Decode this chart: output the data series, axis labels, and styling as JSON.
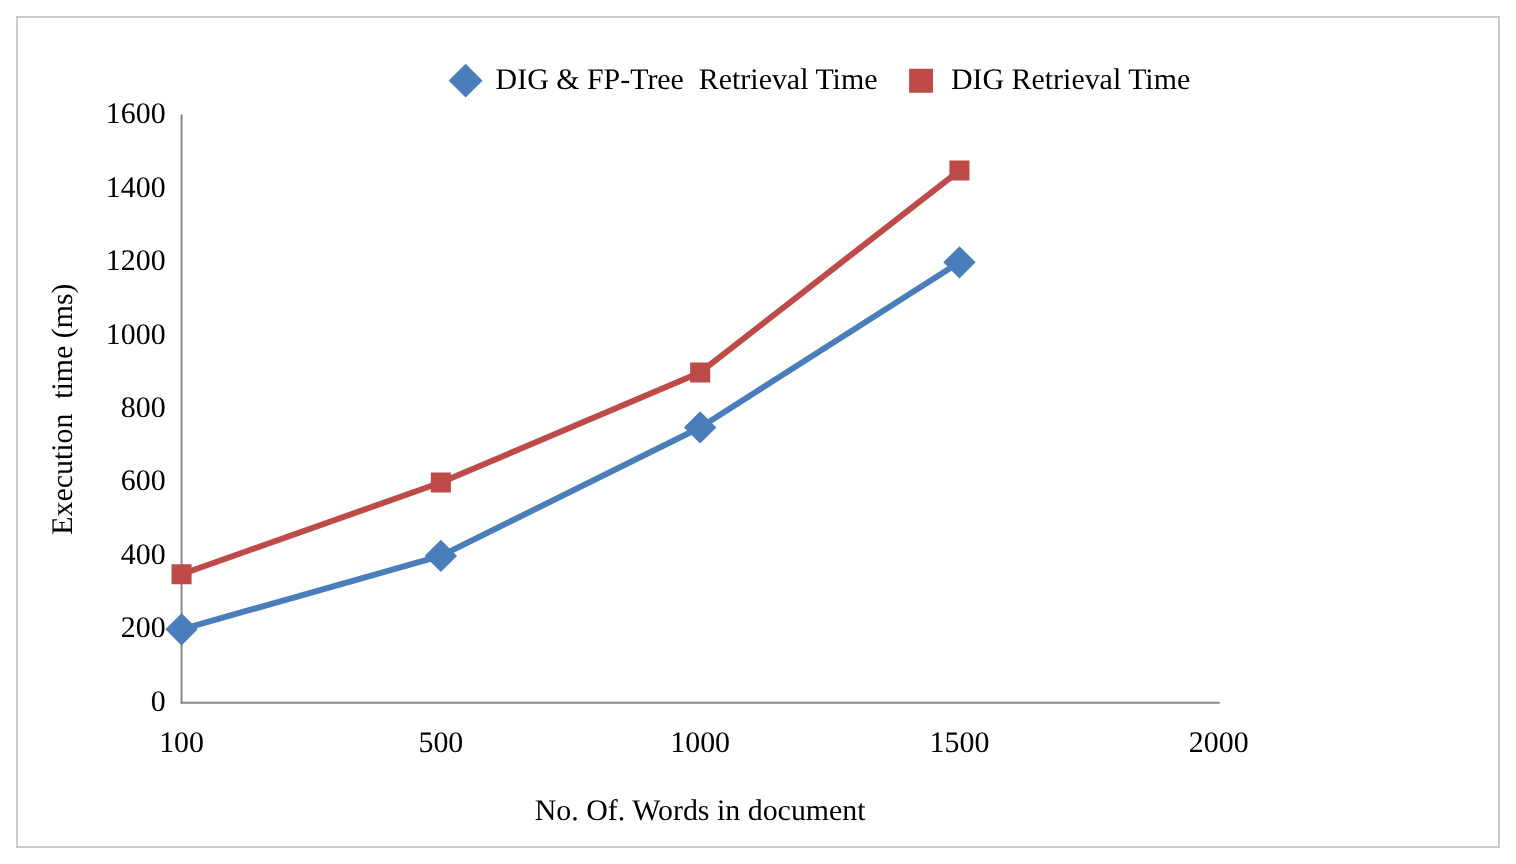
{
  "chart_data": {
    "type": "line",
    "xlabel": "No. Of. Words in document",
    "ylabel": "Execution  time (ms)",
    "categories": [
      "100",
      "500",
      "1000",
      "1500",
      "2000"
    ],
    "series": [
      {
        "name": "DIG & FP-Tree  Retrieval Time",
        "color": "#4a7ebb",
        "marker": "diamond",
        "values": [
          200,
          400,
          750,
          1200,
          null
        ]
      },
      {
        "name": "DIG Retrieval Time",
        "color": "#be4b48",
        "marker": "square",
        "values": [
          350,
          600,
          900,
          1450,
          null
        ]
      }
    ],
    "ylim": [
      0,
      1600
    ],
    "yticks": [
      0,
      200,
      400,
      600,
      800,
      1000,
      1200,
      1400,
      1600
    ],
    "grid": false,
    "legend": "top right"
  }
}
